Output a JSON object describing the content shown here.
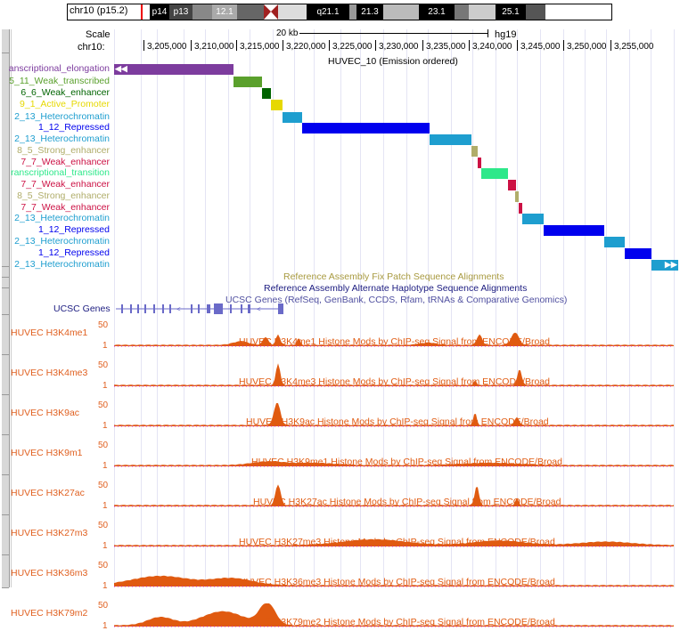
{
  "ideogram": {
    "chrom_label": "chr10 (p15.2)",
    "bands": [
      "p14",
      "p13",
      "12.1",
      "q21.1",
      "21.3",
      "23.1",
      "25.1"
    ]
  },
  "ruler": {
    "scale_label": "Scale",
    "scale_value": "20 kb",
    "assembly": "hg19",
    "chrom_label": "chr10:",
    "ticks": [
      "3,205,000",
      "3,210,000",
      "3,215,000",
      "3,220,000",
      "3,225,000",
      "3,230,000",
      "3,235,000",
      "3,240,000",
      "3,245,000",
      "3,250,000",
      "3,255,000"
    ]
  },
  "hmm_track": {
    "title": "HUVEC_10 (Emission ordered)",
    "rows": [
      {
        "label": "anscriptional_elongation",
        "color": "#7d3c9e"
      },
      {
        "label": "5_11_Weak_transcribed",
        "color": "#5aa02c"
      },
      {
        "label": "6_6_Weak_enhancer",
        "color": "#006400"
      },
      {
        "label": "9_1_Active_Promoter",
        "color": "#e6d800"
      },
      {
        "label": "2_13_Heterochromatin",
        "color": "#1e9ecf"
      },
      {
        "label": "1_12_Repressed",
        "color": "#0000ee"
      },
      {
        "label": "2_13_Heterochromatin",
        "color": "#1e9ecf"
      },
      {
        "label": "8_5_Strong_enhancer",
        "color": "#b0ad6a"
      },
      {
        "label": "7_7_Weak_enhancer",
        "color": "#cc1144"
      },
      {
        "label": "ranscriptional_transition",
        "color": "#2ee88a"
      },
      {
        "label": "7_7_Weak_enhancer",
        "color": "#cc1144"
      },
      {
        "label": "8_5_Strong_enhancer",
        "color": "#b0ad6a"
      },
      {
        "label": "7_7_Weak_enhancer",
        "color": "#cc1144"
      },
      {
        "label": "2_13_Heterochromatin",
        "color": "#1e9ecf"
      },
      {
        "label": "1_12_Repressed",
        "color": "#0000ee"
      },
      {
        "label": "2_13_Heterochromatin",
        "color": "#1e9ecf"
      },
      {
        "label": "1_12_Repressed",
        "color": "#0000ee"
      },
      {
        "label": "2_13_Heterochromatin",
        "color": "#1e9ecf"
      }
    ]
  },
  "fix_patch": "Reference Assembly Fix Patch Sequence Alignments",
  "alt_haplo": "Reference Assembly Alternate Haplotype Sequence Alignments",
  "ucsc_genes": {
    "label": "UCSC Genes",
    "title": "UCSC Genes (RefSeq, GenBank, CCDS, Rfam, tRNAs & Comparative Genomics)"
  },
  "signal_tracks": [
    {
      "label": "HUVEC H3K4me1",
      "title": "HUVEC H3K4me1 Histone Mods by ChIP-seq Signal from ENCODE/Broad",
      "ymax": "50",
      "ymin": "1"
    },
    {
      "label": "HUVEC H3K4me3",
      "title": "HUVEC H3K4me3 Histone Mods by ChIP-seq Signal from ENCODE/Broad",
      "ymax": "50",
      "ymin": "1"
    },
    {
      "label": "HUVEC H3K9ac",
      "title": "HUVEC H3K9ac Histone Mods by ChIP-seq Signal from ENCODE/Broad",
      "ymax": "50",
      "ymin": "1"
    },
    {
      "label": "HUVEC H3K9m1",
      "title": "HUVEC H3K9me1 Histone Mods by ChIP-seq Signal from ENCODE/Broad",
      "ymax": "50",
      "ymin": "1"
    },
    {
      "label": "HUVEC H3K27ac",
      "title": "HUVEC H3K27ac Histone Mods by ChIP-seq Signal from ENCODE/Broad",
      "ymax": "50",
      "ymin": "1"
    },
    {
      "label": "HUVEC H3K27m3",
      "title": "HUVEC H3K27me3 Histone Mods by ChIP-seq Signal from ENCODE/Broad",
      "ymax": "50",
      "ymin": "1"
    },
    {
      "label": "HUVEC H3K36m3",
      "title": "HUVEC H3K36me3 Histone Mods by ChIP-seq Signal from ENCODE/Broad",
      "ymax": "50",
      "ymin": "1"
    },
    {
      "label": "HUVEC H3K79m2",
      "title": "HUVEC H3K79me2 Histone Mods by ChIP-seq Signal from ENCODE/Broad",
      "ymax": "50",
      "ymin": "1"
    }
  ]
}
